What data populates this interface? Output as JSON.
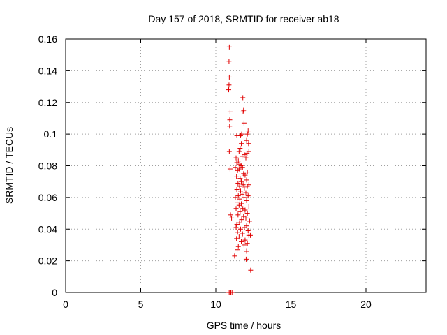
{
  "chart_data": {
    "type": "scatter",
    "title": "Day 157 of 2018, SRMTID for receiver ab18",
    "xlabel": "GPS time / hours",
    "ylabel": "SRMTID / TECUs",
    "xlim": [
      0,
      24
    ],
    "ylim": [
      0,
      0.16
    ],
    "x_ticks": [
      0,
      5,
      10,
      15,
      20
    ],
    "x_tick_labels": [
      "0",
      "5",
      "10",
      "15",
      "20"
    ],
    "y_ticks": [
      0,
      0.02,
      0.04,
      0.06,
      0.08,
      0.1,
      0.12,
      0.14,
      0.16
    ],
    "y_tick_labels": [
      "0",
      "0.02",
      "0.04",
      "0.06",
      "0.08",
      "0.1",
      "0.12",
      "0.14",
      "0.16"
    ],
    "grid": true,
    "marker": "+",
    "color": "#e00000",
    "series": [
      {
        "name": "SRMTID",
        "points": [
          [
            10.83,
            0.0
          ],
          [
            10.92,
            0.0
          ],
          [
            11.0,
            0.0
          ],
          [
            11.08,
            0.0
          ],
          [
            10.9,
            0.155
          ],
          [
            10.88,
            0.146
          ],
          [
            10.9,
            0.136
          ],
          [
            10.88,
            0.131
          ],
          [
            10.86,
            0.128
          ],
          [
            10.95,
            0.114
          ],
          [
            10.93,
            0.109
          ],
          [
            10.92,
            0.105
          ],
          [
            10.9,
            0.089
          ],
          [
            10.95,
            0.078
          ],
          [
            10.98,
            0.049
          ],
          [
            11.05,
            0.047
          ],
          [
            11.8,
            0.123
          ],
          [
            11.85,
            0.115
          ],
          [
            11.82,
            0.114
          ],
          [
            11.88,
            0.107
          ],
          [
            12.15,
            0.102
          ],
          [
            12.1,
            0.1
          ],
          [
            11.72,
            0.1
          ],
          [
            11.65,
            0.099
          ],
          [
            11.4,
            0.099
          ],
          [
            12.05,
            0.096
          ],
          [
            12.18,
            0.094
          ],
          [
            11.7,
            0.094
          ],
          [
            11.62,
            0.091
          ],
          [
            11.55,
            0.089
          ],
          [
            12.2,
            0.089
          ],
          [
            12.08,
            0.088
          ],
          [
            11.9,
            0.087
          ],
          [
            11.75,
            0.086
          ],
          [
            11.35,
            0.085
          ],
          [
            12.0,
            0.085
          ],
          [
            11.5,
            0.083
          ],
          [
            11.4,
            0.082
          ],
          [
            11.6,
            0.081
          ],
          [
            11.68,
            0.08
          ],
          [
            11.78,
            0.079
          ],
          [
            11.3,
            0.079
          ],
          [
            11.55,
            0.078
          ],
          [
            11.45,
            0.077
          ],
          [
            12.1,
            0.076
          ],
          [
            11.85,
            0.075
          ],
          [
            11.95,
            0.074
          ],
          [
            11.38,
            0.073
          ],
          [
            11.62,
            0.072
          ],
          [
            12.05,
            0.071
          ],
          [
            11.7,
            0.07
          ],
          [
            11.48,
            0.069
          ],
          [
            11.82,
            0.068
          ],
          [
            12.2,
            0.068
          ],
          [
            11.58,
            0.067
          ],
          [
            12.1,
            0.067
          ],
          [
            11.9,
            0.066
          ],
          [
            11.4,
            0.065
          ],
          [
            11.65,
            0.064
          ],
          [
            12.0,
            0.063
          ],
          [
            11.75,
            0.062
          ],
          [
            11.5,
            0.061
          ],
          [
            12.15,
            0.061
          ],
          [
            11.88,
            0.06
          ],
          [
            11.3,
            0.06
          ],
          [
            11.6,
            0.059
          ],
          [
            12.05,
            0.058
          ],
          [
            11.42,
            0.057
          ],
          [
            11.7,
            0.056
          ],
          [
            11.55,
            0.055
          ],
          [
            12.2,
            0.054
          ],
          [
            11.8,
            0.053
          ],
          [
            11.35,
            0.053
          ],
          [
            11.95,
            0.052
          ],
          [
            11.62,
            0.051
          ],
          [
            12.1,
            0.05
          ],
          [
            11.48,
            0.049
          ],
          [
            11.85,
            0.048
          ],
          [
            12.0,
            0.047
          ],
          [
            11.72,
            0.046
          ],
          [
            12.25,
            0.045
          ],
          [
            11.58,
            0.044
          ],
          [
            11.4,
            0.043
          ],
          [
            12.05,
            0.042
          ],
          [
            11.9,
            0.041
          ],
          [
            11.35,
            0.041
          ],
          [
            11.65,
            0.04
          ],
          [
            12.15,
            0.039
          ],
          [
            11.45,
            0.038
          ],
          [
            11.78,
            0.037
          ],
          [
            12.3,
            0.036
          ],
          [
            12.2,
            0.036
          ],
          [
            11.55,
            0.035
          ],
          [
            11.38,
            0.034
          ],
          [
            11.95,
            0.033
          ],
          [
            11.7,
            0.032
          ],
          [
            12.1,
            0.031
          ],
          [
            11.88,
            0.03
          ],
          [
            11.5,
            0.029
          ],
          [
            11.42,
            0.027
          ],
          [
            12.05,
            0.026
          ],
          [
            11.25,
            0.023
          ],
          [
            12.02,
            0.021
          ],
          [
            12.32,
            0.014
          ]
        ]
      }
    ]
  }
}
